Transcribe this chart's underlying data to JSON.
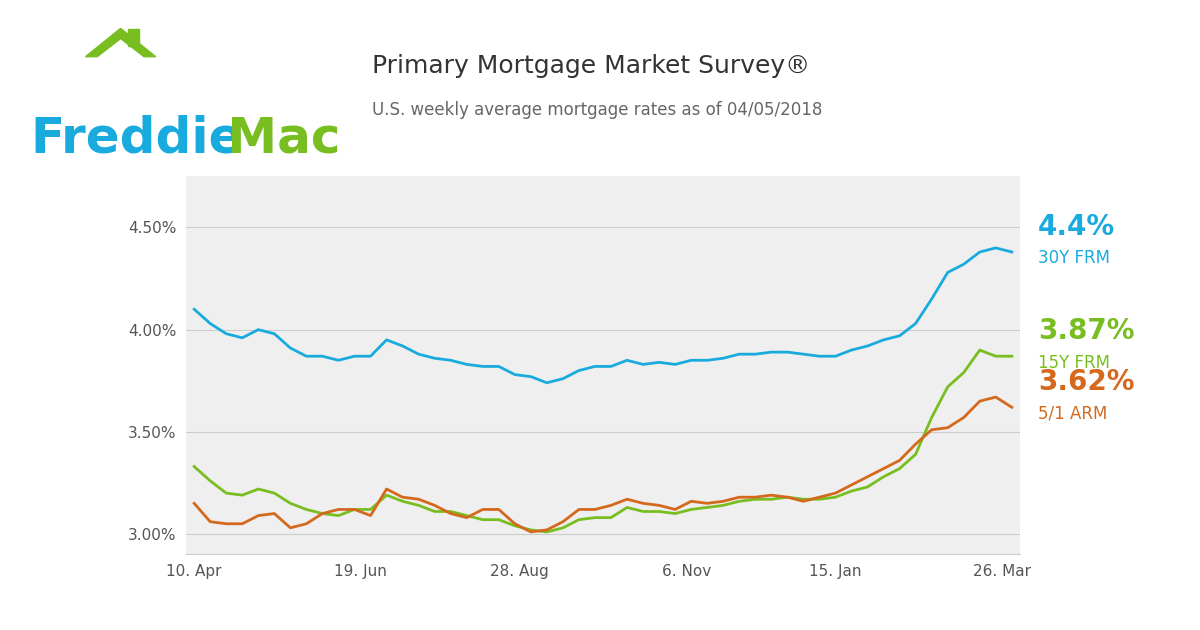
{
  "title": "Primary Mortgage Market Survey®",
  "subtitle": "U.S. weekly average mortgage rates as of 04/05/2018",
  "background_color": "#ffffff",
  "plot_bg_color": "#efefef",
  "freddie_blue": "#1aabde",
  "freddie_green": "#78be20",
  "line_30y_color": "#1aabde",
  "line_15y_color": "#78be20",
  "line_51arm_color": "#d4691e",
  "ylim": [
    2.9,
    4.75
  ],
  "yticks": [
    3.0,
    3.5,
    4.0,
    4.5
  ],
  "ytick_labels": [
    "3.00%",
    "3.50%",
    "4.00%",
    "4.50%"
  ],
  "xtick_labels": [
    "10. Apr",
    "19. Jun",
    "28. Aug",
    "6. Nov",
    "15. Jan",
    "26. Mar"
  ],
  "xtick_positions": [
    0.0,
    0.2039,
    0.398,
    0.602,
    0.7843,
    0.9882
  ],
  "label_30y": "4.4%",
  "label_15y": "3.87%",
  "label_51arm": "3.62%",
  "sublabel_30y": "30Y FRM",
  "sublabel_15y": "15Y FRM",
  "sublabel_51arm": "5/1 ARM",
  "frm30": [
    4.1,
    4.03,
    3.98,
    3.96,
    4.0,
    3.98,
    3.91,
    3.87,
    3.87,
    3.85,
    3.87,
    3.87,
    3.95,
    3.92,
    3.88,
    3.86,
    3.85,
    3.83,
    3.82,
    3.82,
    3.78,
    3.77,
    3.74,
    3.76,
    3.8,
    3.82,
    3.82,
    3.85,
    3.83,
    3.84,
    3.83,
    3.85,
    3.85,
    3.86,
    3.88,
    3.88,
    3.89,
    3.89,
    3.88,
    3.87,
    3.87,
    3.9,
    3.92,
    3.95,
    3.97,
    4.03,
    4.15,
    4.28,
    4.32,
    4.38,
    4.4,
    4.38
  ],
  "frm15": [
    3.33,
    3.26,
    3.2,
    3.19,
    3.22,
    3.2,
    3.15,
    3.12,
    3.1,
    3.09,
    3.12,
    3.12,
    3.19,
    3.16,
    3.14,
    3.11,
    3.11,
    3.09,
    3.07,
    3.07,
    3.04,
    3.02,
    3.01,
    3.03,
    3.07,
    3.08,
    3.08,
    3.13,
    3.11,
    3.11,
    3.1,
    3.12,
    3.13,
    3.14,
    3.16,
    3.17,
    3.17,
    3.18,
    3.17,
    3.17,
    3.18,
    3.21,
    3.23,
    3.28,
    3.32,
    3.39,
    3.57,
    3.72,
    3.79,
    3.9,
    3.87,
    3.87
  ],
  "arm51": [
    3.15,
    3.06,
    3.05,
    3.05,
    3.09,
    3.1,
    3.03,
    3.05,
    3.1,
    3.12,
    3.12,
    3.09,
    3.22,
    3.18,
    3.17,
    3.14,
    3.1,
    3.08,
    3.12,
    3.12,
    3.05,
    3.01,
    3.02,
    3.06,
    3.12,
    3.12,
    3.14,
    3.17,
    3.15,
    3.14,
    3.12,
    3.16,
    3.15,
    3.16,
    3.18,
    3.18,
    3.19,
    3.18,
    3.16,
    3.18,
    3.2,
    3.24,
    3.28,
    3.32,
    3.36,
    3.44,
    3.51,
    3.52,
    3.57,
    3.65,
    3.67,
    3.62
  ]
}
